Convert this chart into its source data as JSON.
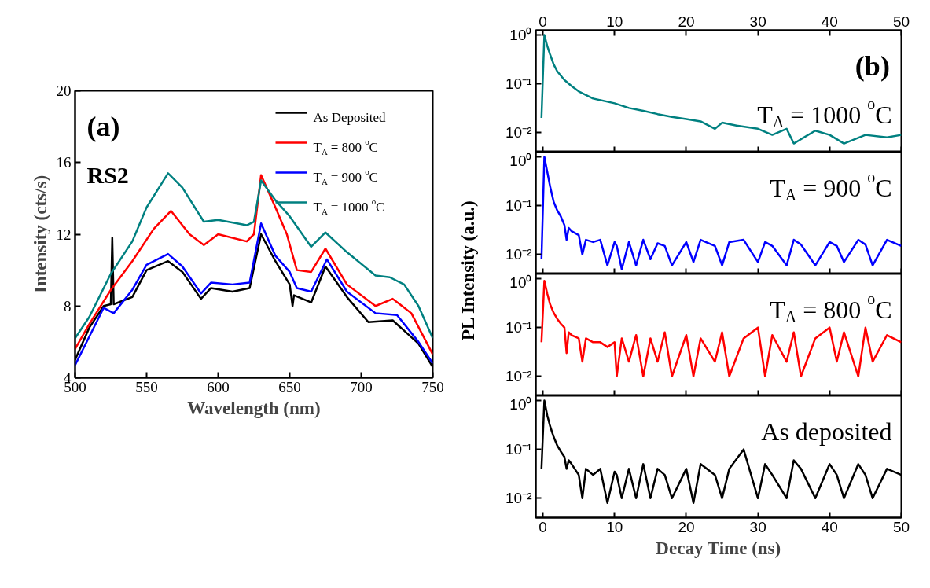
{
  "chart_data": [
    {
      "type": "line",
      "xlabel": "Wavelength (nm)",
      "ylabel": "Intensity (cts/s)",
      "xlim": [
        500,
        750
      ],
      "ylim": [
        4,
        20
      ],
      "xticks": [
        500,
        550,
        600,
        650,
        700,
        750
      ],
      "yticks": [
        4,
        8,
        12,
        16,
        20
      ],
      "legend": "top right",
      "annotations": [
        "(a)",
        "RS2"
      ],
      "series": [
        {
          "name": "As Deposited",
          "color": "#000000",
          "x": [
            500,
            510,
            520,
            525,
            526,
            527,
            540,
            550,
            565,
            575,
            588,
            595,
            610,
            622,
            630,
            640,
            650,
            652,
            653,
            665,
            675,
            690,
            705,
            722,
            740,
            750
          ],
          "values": [
            5.0,
            6.8,
            8.0,
            8.1,
            11.8,
            8.1,
            8.5,
            10.0,
            10.5,
            9.9,
            8.4,
            9.0,
            8.8,
            9.0,
            12.0,
            10.5,
            9.2,
            8.0,
            8.6,
            8.2,
            10.2,
            8.5,
            7.1,
            7.2,
            5.9,
            4.6
          ]
        },
        {
          "name": "T$_{A}$ = 800 $^{o}$C",
          "color": "#ff0000",
          "x": [
            500,
            510,
            525,
            540,
            555,
            567,
            580,
            590,
            600,
            620,
            625,
            630,
            640,
            648,
            655,
            665,
            675,
            690,
            710,
            722,
            735,
            750
          ],
          "values": [
            5.6,
            7.0,
            8.9,
            10.5,
            12.3,
            13.3,
            12.0,
            11.4,
            12.0,
            11.6,
            12.0,
            15.3,
            13.5,
            12.0,
            10.0,
            9.9,
            11.2,
            9.2,
            8.0,
            8.4,
            7.6,
            5.3
          ]
        },
        {
          "name": "T$_{A}$ = 900 $^{o}$C",
          "color": "#0000ff",
          "x": [
            500,
            510,
            520,
            527,
            540,
            550,
            565,
            575,
            588,
            595,
            610,
            622,
            630,
            640,
            650,
            655,
            665,
            676,
            690,
            710,
            725,
            740,
            750
          ],
          "values": [
            4.7,
            6.3,
            7.9,
            7.6,
            8.9,
            10.3,
            10.9,
            10.2,
            8.7,
            9.3,
            9.2,
            9.3,
            12.6,
            10.8,
            9.9,
            9.0,
            8.8,
            10.6,
            8.8,
            7.6,
            7.5,
            6.0,
            4.8
          ]
        },
        {
          "name": "T$_{A}$ = 1000 $^{o}$C",
          "color": "#008080",
          "x": [
            500,
            510,
            525,
            540,
            550,
            565,
            575,
            590,
            600,
            620,
            625,
            630,
            640,
            650,
            665,
            675,
            690,
            710,
            720,
            730,
            740,
            750
          ],
          "values": [
            6.2,
            7.4,
            9.8,
            11.6,
            13.5,
            15.4,
            14.6,
            12.7,
            12.8,
            12.5,
            12.7,
            15.0,
            13.9,
            13.0,
            11.3,
            12.1,
            11.0,
            9.7,
            9.6,
            9.2,
            8.0,
            6.2
          ]
        }
      ]
    },
    {
      "type": "line",
      "log": "y",
      "xlim": [
        -1,
        50
      ],
      "xticks": [
        0,
        10,
        20,
        30,
        40,
        50
      ],
      "x2lim": [
        -1,
        50
      ],
      "x2ticks": [
        0,
        10,
        20,
        30,
        40,
        50
      ],
      "ylim": [
        0.004,
        1.25
      ],
      "yticks": [
        {
          "value": 1,
          "label": "10⁰"
        },
        {
          "value": 0.1,
          "label": "10⁻¹"
        },
        {
          "value": 0.01,
          "label": "10⁻²"
        }
      ],
      "tick_labels": "y",
      "annotations": [
        "(b)",
        "T$_{A}$ = 1000 $^{o}$C"
      ],
      "series": [
        {
          "color": "#008080",
          "x": [
            -0.2,
            0.2,
            0.6,
            1,
            1.5,
            2,
            3,
            4,
            5,
            7,
            10,
            12,
            14,
            16,
            18,
            20,
            22,
            24,
            25,
            27,
            30,
            32,
            34,
            35,
            38,
            40,
            42,
            45,
            48,
            50
          ],
          "values": [
            0.02,
            1.0,
            0.6,
            0.4,
            0.25,
            0.18,
            0.12,
            0.09,
            0.07,
            0.05,
            0.04,
            0.032,
            0.028,
            0.024,
            0.021,
            0.019,
            0.017,
            0.012,
            0.016,
            0.014,
            0.012,
            0.009,
            0.012,
            0.006,
            0.011,
            0.009,
            0.006,
            0.009,
            0.008,
            0.009
          ]
        }
      ]
    },
    {
      "type": "line",
      "log": "y",
      "xlim": [
        -1,
        50
      ],
      "xticks": [
        0,
        10,
        20,
        30,
        40,
        50
      ],
      "ylim": [
        0.004,
        1.25
      ],
      "yticks": [
        {
          "value": 1,
          "label": "10⁰"
        },
        {
          "value": 0.1,
          "label": "10⁻¹"
        },
        {
          "value": 0.01,
          "label": "10⁻²"
        }
      ],
      "tick_labels": "y",
      "ylabel": "PL Intensity (a.u.)",
      "annotations": [
        "T$_{A}$ = 900 $^{o}$C"
      ],
      "series": [
        {
          "color": "#0000ff",
          "x": [
            -0.2,
            0.2,
            0.6,
            1,
            1.5,
            2,
            2.5,
            3,
            3.3,
            3.6,
            4,
            5,
            5.5,
            6,
            7,
            8,
            9,
            10,
            10.3,
            11,
            12,
            13,
            14,
            15,
            16,
            17,
            18,
            20,
            21,
            22,
            24,
            25,
            26,
            28,
            30,
            31,
            32,
            34,
            35,
            36,
            38,
            40,
            41,
            42,
            44,
            45,
            46,
            48,
            50
          ],
          "values": [
            0.008,
            1.0,
            0.5,
            0.25,
            0.12,
            0.08,
            0.06,
            0.04,
            0.02,
            0.035,
            0.03,
            0.025,
            0.01,
            0.02,
            0.018,
            0.02,
            0.006,
            0.018,
            0.015,
            0.005,
            0.018,
            0.006,
            0.02,
            0.008,
            0.017,
            0.015,
            0.006,
            0.018,
            0.007,
            0.02,
            0.015,
            0.006,
            0.018,
            0.02,
            0.007,
            0.018,
            0.015,
            0.006,
            0.02,
            0.016,
            0.006,
            0.018,
            0.015,
            0.007,
            0.02,
            0.016,
            0.006,
            0.02,
            0.015
          ]
        }
      ]
    },
    {
      "type": "line",
      "log": "y",
      "xlim": [
        -1,
        50
      ],
      "xticks": [
        0,
        10,
        20,
        30,
        40,
        50
      ],
      "ylim": [
        0.004,
        1.25
      ],
      "yticks": [
        {
          "value": 1,
          "label": "10⁰"
        },
        {
          "value": 0.1,
          "label": "10⁻¹"
        },
        {
          "value": 0.01,
          "label": "10⁻²"
        }
      ],
      "tick_labels": "y",
      "annotations": [
        "T$_{A}$ = 800 $^{o}$C"
      ],
      "series": [
        {
          "color": "#ff0000",
          "x": [
            -0.2,
            0.2,
            0.6,
            1,
            1.5,
            2,
            2.5,
            3,
            3.3,
            3.6,
            4,
            5,
            5.5,
            6,
            7,
            8,
            9,
            10,
            10.3,
            11,
            12,
            13,
            14,
            15,
            16,
            17,
            18,
            20,
            21,
            22,
            24,
            25,
            26,
            28,
            30,
            31,
            32,
            34,
            35,
            36,
            38,
            40,
            41,
            42,
            44,
            45,
            46,
            48,
            50
          ],
          "values": [
            0.05,
            0.9,
            0.5,
            0.3,
            0.2,
            0.15,
            0.12,
            0.1,
            0.03,
            0.08,
            0.07,
            0.06,
            0.02,
            0.06,
            0.05,
            0.05,
            0.04,
            0.05,
            0.01,
            0.06,
            0.02,
            0.07,
            0.01,
            0.06,
            0.02,
            0.08,
            0.01,
            0.07,
            0.01,
            0.06,
            0.02,
            0.08,
            0.01,
            0.06,
            0.1,
            0.01,
            0.07,
            0.02,
            0.08,
            0.01,
            0.06,
            0.1,
            0.02,
            0.08,
            0.01,
            0.1,
            0.02,
            0.07,
            0.05
          ]
        }
      ]
    },
    {
      "type": "line",
      "log": "y",
      "xlim": [
        -1,
        50
      ],
      "xticks": [
        0,
        10,
        20,
        30,
        40,
        50
      ],
      "ylim": [
        0.004,
        1.25
      ],
      "yticks": [
        {
          "value": 1,
          "label": "10⁰"
        },
        {
          "value": 0.1,
          "label": "10⁻¹"
        },
        {
          "value": 0.01,
          "label": "10⁻²"
        }
      ],
      "xlabel": "Decay Time (ns)",
      "annotations": [
        "As deposited"
      ],
      "series": [
        {
          "color": "#000000",
          "x": [
            -0.2,
            0.2,
            0.6,
            1,
            1.5,
            2,
            2.5,
            3,
            3.3,
            3.6,
            4,
            5,
            5.5,
            6,
            7,
            8,
            9,
            10,
            10.3,
            11,
            12,
            13,
            14,
            15,
            16,
            17,
            18,
            20,
            21,
            22,
            24,
            25,
            26,
            28,
            30,
            31,
            32,
            34,
            35,
            36,
            38,
            40,
            41,
            42,
            44,
            45,
            46,
            48,
            50
          ],
          "values": [
            0.04,
            1.0,
            0.5,
            0.3,
            0.18,
            0.12,
            0.09,
            0.07,
            0.04,
            0.06,
            0.05,
            0.03,
            0.01,
            0.04,
            0.03,
            0.04,
            0.008,
            0.035,
            0.03,
            0.01,
            0.04,
            0.01,
            0.05,
            0.01,
            0.04,
            0.03,
            0.01,
            0.04,
            0.008,
            0.05,
            0.03,
            0.01,
            0.04,
            0.1,
            0.01,
            0.05,
            0.03,
            0.01,
            0.06,
            0.04,
            0.01,
            0.05,
            0.03,
            0.01,
            0.05,
            0.03,
            0.01,
            0.04,
            0.03
          ]
        }
      ]
    }
  ]
}
